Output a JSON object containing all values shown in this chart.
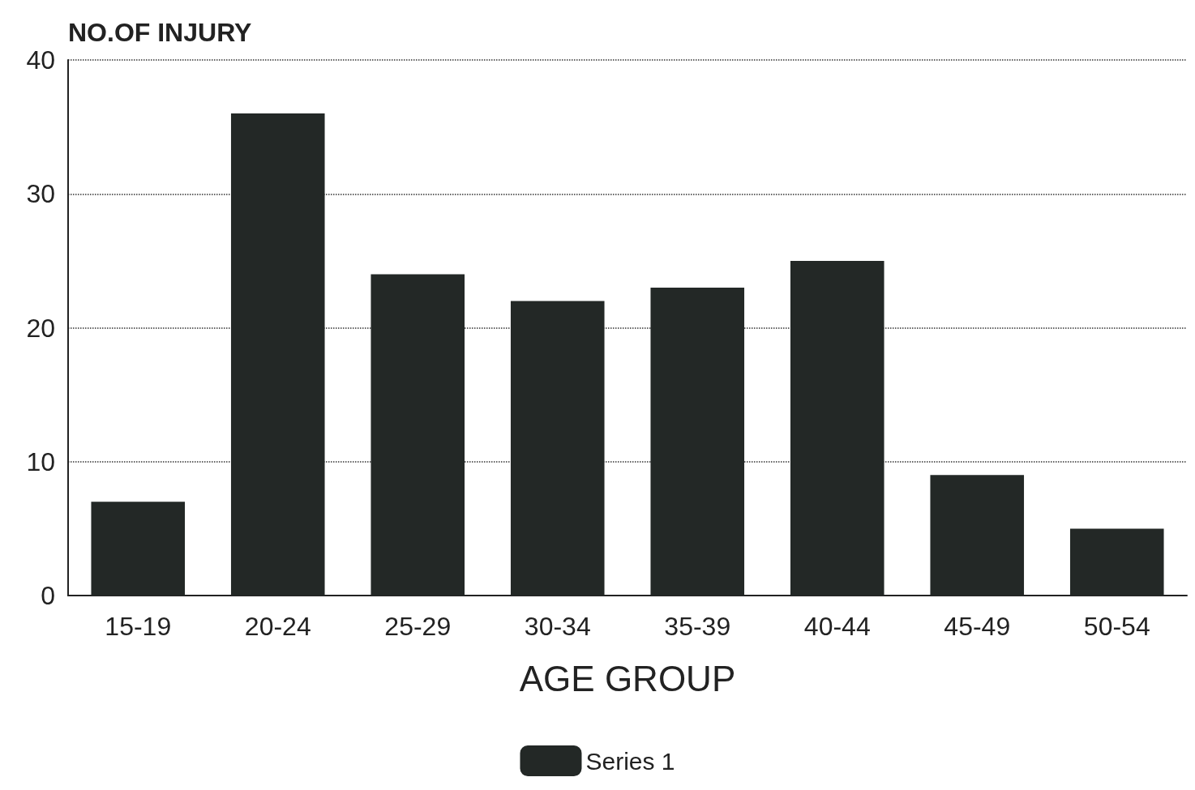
{
  "chart_data": {
    "type": "bar",
    "ylabel": "NO.OF INJURY",
    "xlabel": "AGE GROUP",
    "categories": [
      "15-19",
      "20-24",
      "25-29",
      "30-34",
      "35-39",
      "40-44",
      "45-49",
      "50-54"
    ],
    "series": [
      {
        "name": "Series 1",
        "color": "#232826",
        "values": [
          7,
          36,
          24,
          22,
          23,
          25,
          9,
          5
        ]
      }
    ],
    "ylim": [
      0,
      40
    ],
    "yticks": [
      0,
      10,
      20,
      30,
      40
    ],
    "grid": "y",
    "legend": "bottom"
  }
}
